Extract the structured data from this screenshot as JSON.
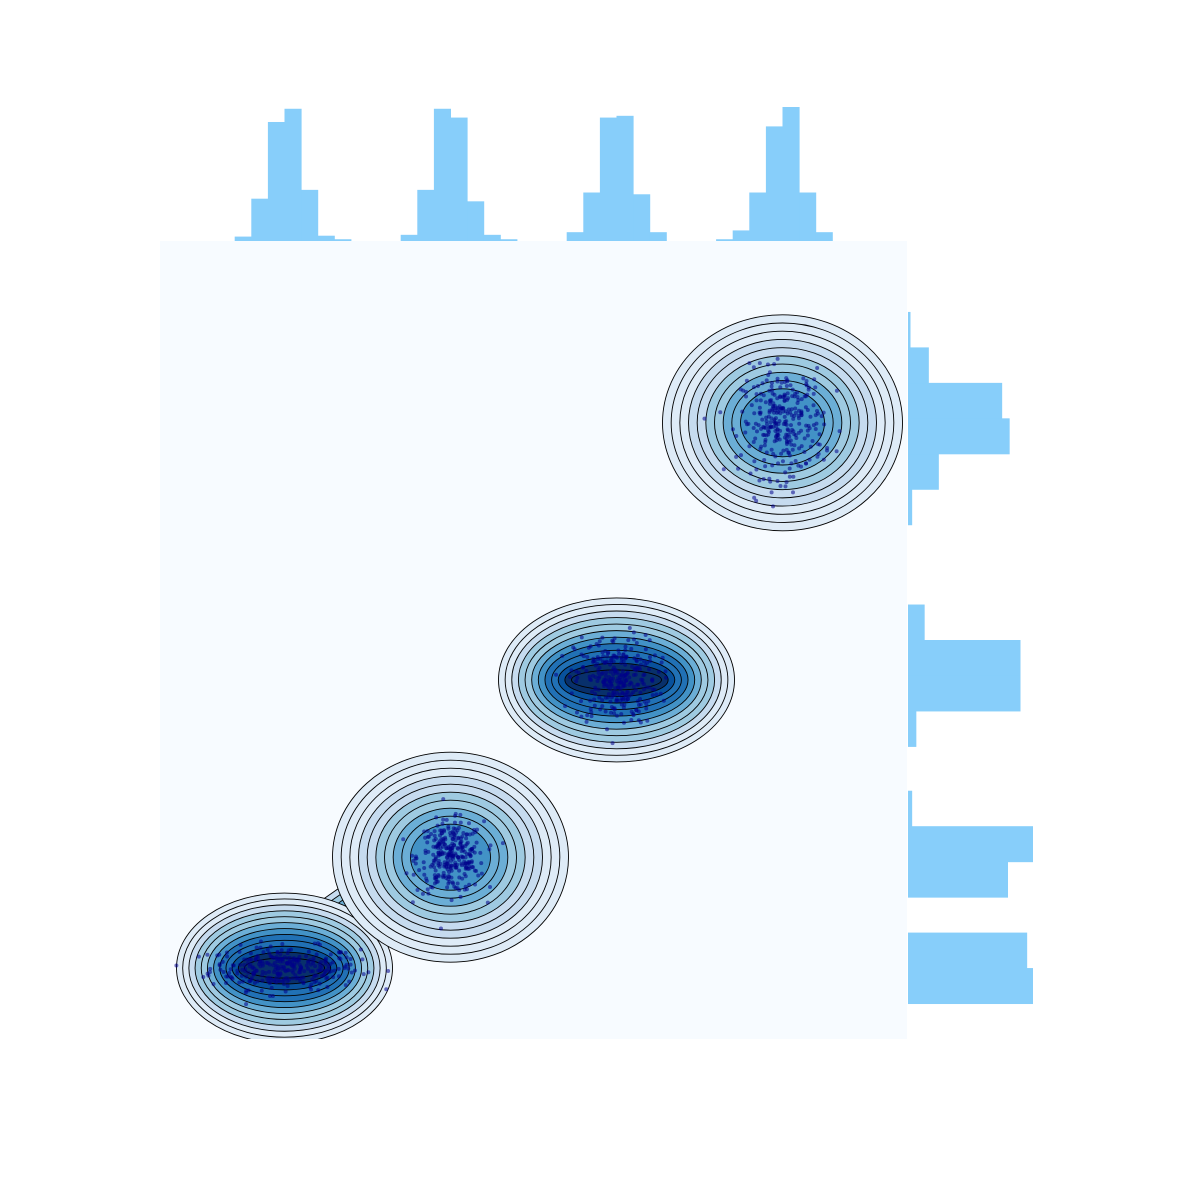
{
  "chart_data": {
    "type": "scatter",
    "subtype": "jointplot-kde-with-marginal-histograms",
    "title": "",
    "xlabel": "",
    "ylabel": "",
    "xlim": [
      0,
      9
    ],
    "ylim": [
      0,
      9
    ],
    "axes_visible": false,
    "grid": false,
    "legend": "none",
    "clusters": [
      {
        "name": "",
        "center": [
          1.5,
          0.8
        ],
        "spread": [
          0.45,
          0.12
        ],
        "n": 300
      },
      {
        "name": "",
        "center": [
          3.5,
          2.05
        ],
        "spread": [
          0.2,
          0.2
        ],
        "n": 300
      },
      {
        "name": "",
        "center": [
          5.5,
          4.05
        ],
        "spread": [
          0.25,
          0.25
        ],
        "n": 300
      },
      {
        "name": "",
        "center": [
          7.5,
          6.95
        ],
        "spread": [
          0.25,
          0.3
        ],
        "n": 300
      }
    ],
    "x_marginal_histogram": {
      "bins": [
        {
          "x0": 0.9,
          "x1": 1.1,
          "count": 5
        },
        {
          "x0": 1.1,
          "x1": 1.3,
          "count": 48
        },
        {
          "x0": 1.3,
          "x1": 1.5,
          "count": 135
        },
        {
          "x0": 1.5,
          "x1": 1.7,
          "count": 150
        },
        {
          "x0": 1.7,
          "x1": 1.9,
          "count": 58
        },
        {
          "x0": 1.9,
          "x1": 2.1,
          "count": 6
        },
        {
          "x0": 2.1,
          "x1": 2.3,
          "count": 2
        },
        {
          "x0": 2.9,
          "x1": 3.1,
          "count": 7
        },
        {
          "x0": 3.1,
          "x1": 3.3,
          "count": 58
        },
        {
          "x0": 3.3,
          "x1": 3.5,
          "count": 150
        },
        {
          "x0": 3.5,
          "x1": 3.7,
          "count": 140
        },
        {
          "x0": 3.7,
          "x1": 3.9,
          "count": 45
        },
        {
          "x0": 3.9,
          "x1": 4.1,
          "count": 7
        },
        {
          "x0": 4.1,
          "x1": 4.3,
          "count": 2
        },
        {
          "x0": 4.9,
          "x1": 5.1,
          "count": 10
        },
        {
          "x0": 5.1,
          "x1": 5.3,
          "count": 55
        },
        {
          "x0": 5.3,
          "x1": 5.5,
          "count": 140
        },
        {
          "x0": 5.5,
          "x1": 5.7,
          "count": 142
        },
        {
          "x0": 5.7,
          "x1": 5.9,
          "count": 53
        },
        {
          "x0": 5.9,
          "x1": 6.1,
          "count": 10
        },
        {
          "x0": 6.7,
          "x1": 6.9,
          "count": 2
        },
        {
          "x0": 6.9,
          "x1": 7.1,
          "count": 12
        },
        {
          "x0": 7.1,
          "x1": 7.3,
          "count": 55
        },
        {
          "x0": 7.3,
          "x1": 7.5,
          "count": 130
        },
        {
          "x0": 7.5,
          "x1": 7.7,
          "count": 152
        },
        {
          "x0": 7.7,
          "x1": 7.9,
          "count": 55
        },
        {
          "x0": 7.9,
          "x1": 8.1,
          "count": 10
        }
      ]
    },
    "y_marginal_histogram": {
      "bins": [
        {
          "y0": 0.4,
          "y1": 0.8,
          "count": 150
        },
        {
          "y0": 0.8,
          "y1": 1.2,
          "count": 143
        },
        {
          "y0": 1.6,
          "y1": 2.0,
          "count": 120
        },
        {
          "y0": 2.0,
          "y1": 2.4,
          "count": 150
        },
        {
          "y0": 2.4,
          "y1": 2.8,
          "count": 5
        },
        {
          "y0": 3.3,
          "y1": 3.7,
          "count": 10
        },
        {
          "y0": 3.7,
          "y1": 4.1,
          "count": 135
        },
        {
          "y0": 4.1,
          "y1": 4.5,
          "count": 135
        },
        {
          "y0": 4.5,
          "y1": 4.9,
          "count": 20
        },
        {
          "y0": 5.8,
          "y1": 6.2,
          "count": 5
        },
        {
          "y0": 6.2,
          "y1": 6.6,
          "count": 37
        },
        {
          "y0": 6.6,
          "y1": 7.0,
          "count": 122
        },
        {
          "y0": 7.0,
          "y1": 7.4,
          "count": 113
        },
        {
          "y0": 7.4,
          "y1": 7.8,
          "count": 25
        },
        {
          "y0": 7.8,
          "y1": 8.2,
          "count": 3
        }
      ]
    },
    "colors": {
      "panel_background": "#f7fbff",
      "kde_fill": [
        "#deebf7",
        "#c6dbef",
        "#9ecae1",
        "#6baed6",
        "#4292c6",
        "#2171b5",
        "#08519c",
        "#08306b"
      ],
      "kde_line": "#000000",
      "points": "#00008b",
      "histogram": "#87cefa"
    }
  }
}
